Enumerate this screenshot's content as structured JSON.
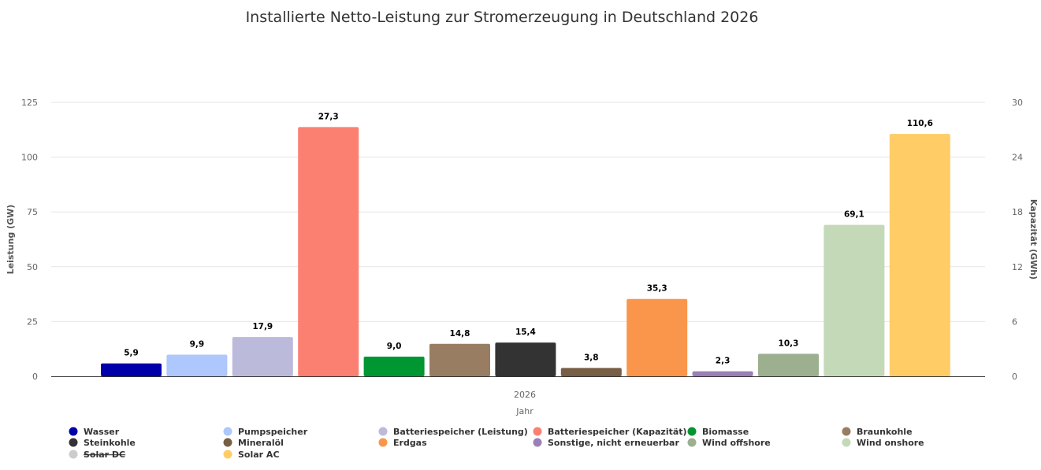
{
  "chart_data": {
    "type": "bar",
    "title": "Installierte Netto-Leistung zur Stromerzeugung in Deutschland 2026",
    "xlabel": "Jahr",
    "ylabel": "Leistung (GW)",
    "y2label": "Kapazität (GWh)",
    "categories": [
      "2026"
    ],
    "ylim": [
      0,
      125
    ],
    "y2lim": [
      0,
      30
    ],
    "yticks": [
      "0",
      "25",
      "50",
      "75",
      "100",
      "125"
    ],
    "y2ticks": [
      "0",
      "6",
      "12",
      "18",
      "24",
      "30"
    ],
    "grid": true,
    "legend_position": "bottom",
    "series": [
      {
        "name": "Wasser",
        "values": [
          5.9
        ],
        "label": "5,9",
        "color": "#0000aa",
        "axis": "left"
      },
      {
        "name": "Pumpspeicher",
        "values": [
          9.9
        ],
        "label": "9,9",
        "color": "#aec7fc",
        "axis": "left"
      },
      {
        "name": "Batteriespeicher (Leistung)",
        "values": [
          17.9
        ],
        "label": "17,9",
        "color": "#bcbadb",
        "axis": "left"
      },
      {
        "name": "Batteriespeicher (Kapazität)",
        "values": [
          27.3
        ],
        "label": "27,3",
        "color": "#fc8072",
        "axis": "right"
      },
      {
        "name": "Biomasse",
        "values": [
          9.0
        ],
        "label": "9,0",
        "color": "#009632",
        "axis": "left"
      },
      {
        "name": "Braunkohle",
        "values": [
          14.8
        ],
        "label": "14,8",
        "color": "#987d63",
        "axis": "left"
      },
      {
        "name": "Steinkohle",
        "values": [
          15.4
        ],
        "label": "15,4",
        "color": "#333333",
        "axis": "left"
      },
      {
        "name": "Mineralöl",
        "values": [
          3.8
        ],
        "label": "3,8",
        "color": "#785e45",
        "axis": "left"
      },
      {
        "name": "Erdgas",
        "values": [
          35.3
        ],
        "label": "35,3",
        "color": "#fa964b",
        "axis": "left"
      },
      {
        "name": "Sonstige, nicht erneuerbar",
        "values": [
          2.3
        ],
        "label": "2,3",
        "color": "#9b80b6",
        "axis": "left"
      },
      {
        "name": "Wind offshore",
        "values": [
          10.3
        ],
        "label": "10,3",
        "color": "#9cb090",
        "axis": "left"
      },
      {
        "name": "Wind onshore",
        "values": [
          69.1
        ],
        "label": "69,1",
        "color": "#c4d9b8",
        "axis": "left"
      },
      {
        "name": "Solar DC",
        "values": [
          null
        ],
        "label": "",
        "color": "#cccccc",
        "axis": "left",
        "hidden": true
      },
      {
        "name": "Solar AC",
        "values": [
          110.6
        ],
        "label": "110,6",
        "color": "#ffcc66",
        "axis": "left"
      }
    ],
    "legend_order": [
      "Wasser",
      "Pumpspeicher",
      "Batteriespeicher (Leistung)",
      "Batteriespeicher (Kapazität)",
      "Biomasse",
      "Braunkohle",
      "Steinkohle",
      "Mineralöl",
      "Erdgas",
      "Sonstige, nicht erneuerbar",
      "Wind offshore",
      "Wind onshore",
      "Solar DC",
      "Solar AC"
    ]
  }
}
